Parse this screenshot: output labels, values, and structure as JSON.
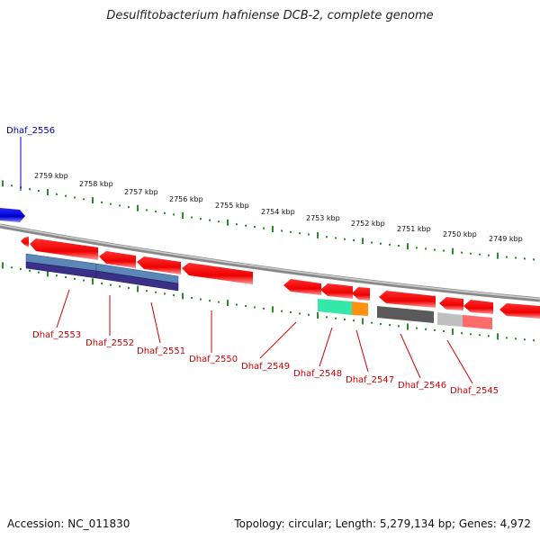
{
  "title": "Desulfitobacterium hafniense DCB-2, complete genome",
  "footer": {
    "accession": "Accession: NC_011830",
    "summary": "Topology: circular; Length: 5,279,134 bp; Genes: 4,972"
  },
  "scale_labels": [
    "2759 kbp",
    "2758 kbp",
    "2757 kbp",
    "2756 kbp",
    "2755 kbp",
    "2754 kbp",
    "2753 kbp",
    "2752 kbp",
    "2751 kbp",
    "2750 kbp",
    "2749 kbp"
  ],
  "top_gene_label": "Dhaf_2556",
  "gene_labels": [
    "Dhaf_2553",
    "Dhaf_2552",
    "Dhaf_2551",
    "Dhaf_2550",
    "Dhaf_2549",
    "Dhaf_2548",
    "Dhaf_2547",
    "Dhaf_2546",
    "Dhaf_2545"
  ],
  "colors": {
    "forward_gene": "#0000cc",
    "reverse_gene": "#ff0000",
    "reverse_label": "#cc0000",
    "forward_label": "#0000aa",
    "tick": "#2e8b2e",
    "backbone": "#888888",
    "feature_blue": "#4a6fa5",
    "feature_indigo": "#3b2f7a",
    "feature_green": "#33e0a0",
    "feature_orange": "#ff8c00",
    "feature_dark": "#555555",
    "feature_lightgray": "#bbbbbb",
    "feature_pink": "#ff6666"
  }
}
